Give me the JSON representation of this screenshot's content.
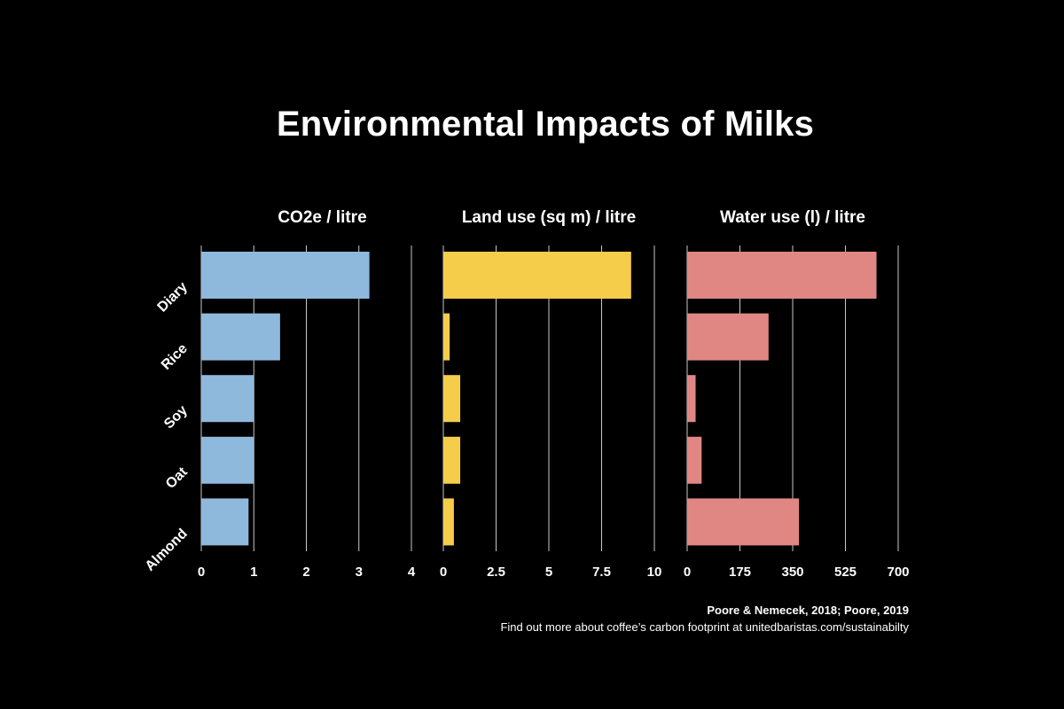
{
  "title": "Environmental Impacts of Milks",
  "chart_data": [
    {
      "type": "bar",
      "orientation": "horizontal",
      "title": "CO2e / litre",
      "categories": [
        "Diary",
        "Rice",
        "Soy",
        "Oat",
        "Almond"
      ],
      "values": [
        3.2,
        1.5,
        1.0,
        1.0,
        0.9
      ],
      "xlim": [
        0,
        4
      ],
      "ticks": [
        "0",
        "1",
        "2",
        "3",
        "4"
      ],
      "color": "#8fb9dc",
      "grid": true
    },
    {
      "type": "bar",
      "orientation": "horizontal",
      "title": "Land use (sq m) / litre",
      "categories": [
        "Diary",
        "Rice",
        "Soy",
        "Oat",
        "Almond"
      ],
      "values": [
        8.9,
        0.3,
        0.8,
        0.8,
        0.5
      ],
      "xlim": [
        0,
        10
      ],
      "ticks": [
        "0",
        "2.5",
        "5",
        "7.5",
        "10"
      ],
      "color": "#f5cd4a",
      "grid": true
    },
    {
      "type": "bar",
      "orientation": "horizontal",
      "title": "Water use (l) / litre",
      "categories": [
        "Diary",
        "Rice",
        "Soy",
        "Oat",
        "Almond"
      ],
      "values": [
        628,
        270,
        28,
        48,
        371
      ],
      "xlim": [
        0,
        700
      ],
      "ticks": [
        "0",
        "175",
        "350",
        "525",
        "700"
      ],
      "color": "#e08784",
      "grid": true
    }
  ],
  "footer": {
    "source": "Poore & Nemecek, 2018; Poore, 2019",
    "note": "Find out more about coffee’s carbon footprint at unitedbaristas.com/sustainabilty"
  }
}
